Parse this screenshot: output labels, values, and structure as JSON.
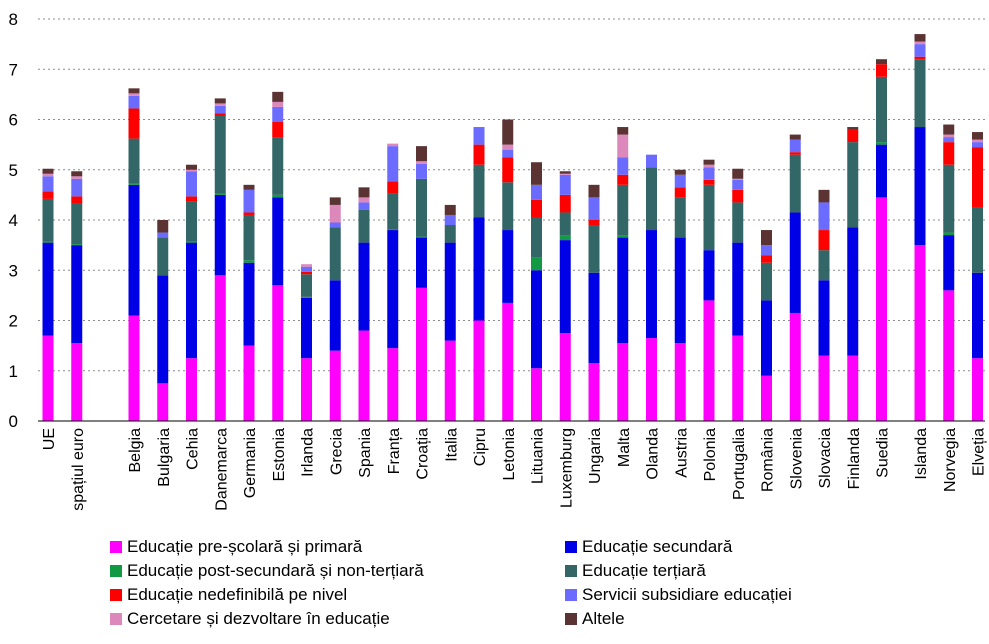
{
  "chart_data": {
    "type": "bar",
    "stacked": true,
    "title": "",
    "xlabel": "",
    "ylabel": "",
    "ylim": [
      0,
      8
    ],
    "yticks": [
      0,
      1,
      2,
      3,
      4,
      5,
      6,
      7,
      8
    ],
    "grid": "horizontal dotted",
    "legend_placement": "bottom",
    "categories": [
      "UE",
      "spațiul euro",
      "Belgia",
      "Bulgaria",
      "Cehia",
      "Danemarca",
      "Germania",
      "Estonia",
      "Irlanda",
      "Grecia",
      "Spania",
      "Franța",
      "Croația",
      "Italia",
      "Cipru",
      "Letonia",
      "Lituania",
      "Luxemburg",
      "Ungaria",
      "Malta",
      "Olanda",
      "Austria",
      "Polonia",
      "Portugalia",
      "România",
      "Slovenia",
      "Slovacia",
      "Finlanda",
      "Suedia",
      "Islanda",
      "Norvegia",
      "Elveția"
    ],
    "category_groups": [
      [
        "UE",
        "spațiul euro"
      ],
      [
        "Belgia",
        "Bulgaria",
        "Cehia",
        "Danemarca",
        "Germania",
        "Estonia",
        "Irlanda",
        "Grecia",
        "Spania",
        "Franța",
        "Croația",
        "Italia",
        "Cipru",
        "Letonia",
        "Lituania",
        "Luxemburg",
        "Ungaria",
        "Malta",
        "Olanda",
        "Austria",
        "Polonia",
        "Portugalia",
        "România",
        "Slovenia",
        "Slovacia",
        "Finlanda",
        "Suedia"
      ],
      [
        "Islanda",
        "Norvegia",
        "Elveția"
      ]
    ],
    "series": [
      {
        "name": "Educație pre-școlară și primară",
        "color": "#ff00ff",
        "values": [
          1.7,
          1.55,
          2.1,
          0.75,
          1.25,
          2.9,
          1.5,
          2.7,
          1.25,
          1.4,
          1.8,
          1.45,
          2.65,
          1.6,
          2.0,
          2.35,
          1.05,
          1.75,
          1.15,
          1.55,
          1.65,
          1.55,
          2.4,
          1.7,
          0.9,
          2.15,
          1.3,
          1.3,
          4.45,
          3.5,
          2.6,
          1.25
        ]
      },
      {
        "name": "Educație secundară",
        "color": "#0000e6",
        "values": [
          1.85,
          1.95,
          2.6,
          2.15,
          2.3,
          1.6,
          1.65,
          1.75,
          1.2,
          1.4,
          1.75,
          2.35,
          1.0,
          1.95,
          2.05,
          1.45,
          1.95,
          1.85,
          1.8,
          2.1,
          2.15,
          2.1,
          1.0,
          1.85,
          1.5,
          2.0,
          1.5,
          2.55,
          1.05,
          2.35,
          1.1,
          1.7
        ]
      },
      {
        "name": "Educație post-secundară și non-terțiară",
        "color": "#119944",
        "values": [
          0.02,
          0.02,
          0.02,
          0.0,
          0.02,
          0.02,
          0.05,
          0.05,
          0.02,
          0.0,
          0.0,
          0.02,
          0.02,
          0.0,
          0.0,
          0.0,
          0.25,
          0.1,
          0.0,
          0.05,
          0.0,
          0.0,
          0.0,
          0.0,
          0.0,
          0.0,
          0.0,
          0.0,
          0.05,
          0.0,
          0.05,
          0.0
        ]
      },
      {
        "name": "Educație terțiară",
        "color": "#336666",
        "values": [
          0.85,
          0.8,
          0.9,
          0.75,
          0.8,
          1.55,
          0.9,
          1.15,
          0.45,
          1.05,
          0.65,
          0.7,
          1.15,
          0.35,
          1.05,
          0.95,
          0.8,
          0.45,
          0.95,
          1.0,
          1.25,
          0.8,
          1.3,
          0.8,
          0.75,
          1.15,
          0.6,
          1.7,
          1.3,
          1.35,
          1.35,
          1.3
        ]
      },
      {
        "name": "Educație nedefinibilă pe nivel",
        "color": "#ff0000",
        "values": [
          0.15,
          0.15,
          0.6,
          0.0,
          0.1,
          0.05,
          0.05,
          0.3,
          0.05,
          0.0,
          0.0,
          0.25,
          0.0,
          0.0,
          0.4,
          0.5,
          0.35,
          0.35,
          0.1,
          0.2,
          0.0,
          0.2,
          0.1,
          0.25,
          0.15,
          0.05,
          0.4,
          0.25,
          0.25,
          0.05,
          0.45,
          1.2
        ]
      },
      {
        "name": "Servicii subsidiare educației",
        "color": "#6b6bff",
        "values": [
          0.3,
          0.35,
          0.25,
          0.1,
          0.5,
          0.15,
          0.45,
          0.3,
          0.1,
          0.1,
          0.15,
          0.7,
          0.3,
          0.2,
          0.35,
          0.15,
          0.3,
          0.4,
          0.45,
          0.35,
          0.25,
          0.25,
          0.25,
          0.2,
          0.2,
          0.25,
          0.55,
          0.0,
          0.0,
          0.25,
          0.1,
          0.1
        ]
      },
      {
        "name": "Cercetare și dezvoltare în educație",
        "color": "#dd88bb",
        "values": [
          0.05,
          0.05,
          0.05,
          0.0,
          0.03,
          0.05,
          0.0,
          0.1,
          0.05,
          0.35,
          0.1,
          0.05,
          0.05,
          0.0,
          0.0,
          0.1,
          0.0,
          0.02,
          0.0,
          0.45,
          0.0,
          0.0,
          0.05,
          0.02,
          0.0,
          0.0,
          0.0,
          0.0,
          0.0,
          0.05,
          0.05,
          0.05
        ]
      },
      {
        "name": "Altele",
        "color": "#5c3333",
        "values": [
          0.1,
          0.1,
          0.1,
          0.25,
          0.1,
          0.1,
          0.1,
          0.2,
          0.0,
          0.15,
          0.2,
          0.0,
          0.3,
          0.2,
          0.0,
          0.5,
          0.45,
          0.05,
          0.25,
          0.15,
          0.0,
          0.1,
          0.1,
          0.2,
          0.3,
          0.1,
          0.25,
          0.05,
          0.1,
          0.15,
          0.2,
          0.15
        ]
      }
    ]
  }
}
